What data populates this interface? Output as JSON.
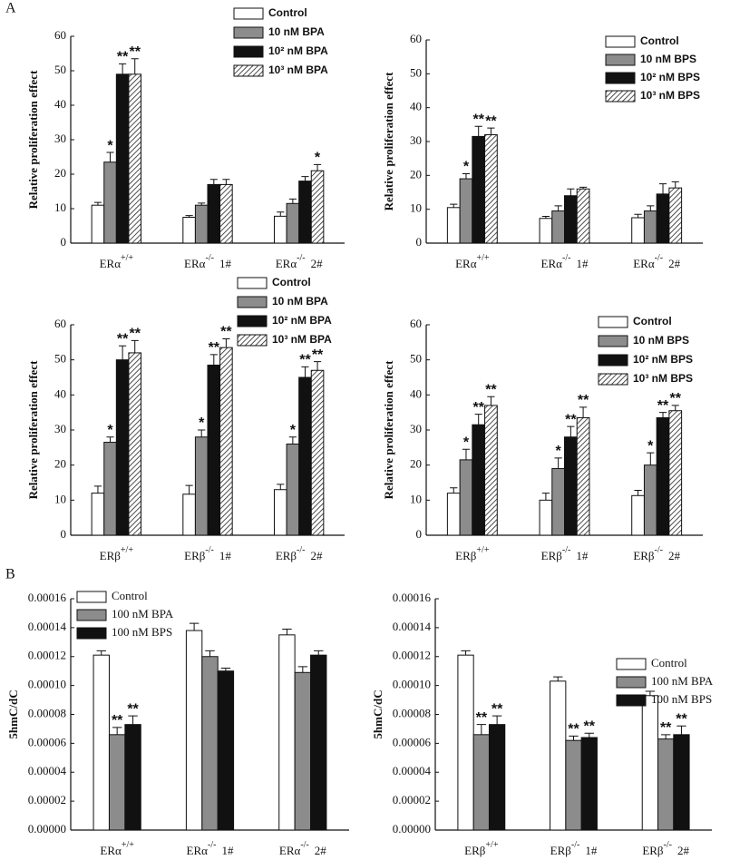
{
  "figure_labels": [
    "A",
    "B"
  ],
  "chart_data": [
    {
      "type": "bar",
      "ylabel": "Relative proliferation effect",
      "categories": [
        {
          "label": "ERα",
          "sup": "+/+"
        },
        {
          "label": "ERα",
          "sup": "-/-",
          "suffix": "1#"
        },
        {
          "label": "ERα",
          "sup": "-/-",
          "suffix": "2#"
        }
      ],
      "ylim": [
        0,
        60
      ],
      "yticks": [
        0,
        10,
        20,
        30,
        40,
        50,
        60
      ],
      "series": [
        {
          "name": "Control",
          "color": "#ffffff",
          "values": [
            11,
            7.5,
            7.8
          ],
          "errors": [
            0.8,
            0.5,
            1.2
          ],
          "annotations": [
            null,
            null,
            null
          ]
        },
        {
          "name": "10 nM BPA",
          "color": "#8c8c8c",
          "values": [
            23.5,
            11,
            11.5
          ],
          "errors": [
            2.8,
            0.6,
            1.3
          ],
          "annotations": [
            "*",
            null,
            null
          ]
        },
        {
          "name": "10² nM BPA",
          "color": "#111111",
          "values": [
            49,
            17,
            18
          ],
          "errors": [
            3,
            1.5,
            1.3
          ],
          "annotations": [
            "**",
            null,
            null
          ]
        },
        {
          "name": "10³ nM BPA",
          "color": "#ffffff",
          "pattern": "hatch",
          "values": [
            49,
            17,
            21
          ],
          "errors": [
            4.5,
            1.5,
            1.8
          ],
          "annotations": [
            "**",
            null,
            "*"
          ]
        }
      ]
    },
    {
      "type": "bar",
      "ylabel": "Relative proliferation effect",
      "categories": [
        {
          "label": "ERα",
          "sup": "+/+"
        },
        {
          "label": "ERα",
          "sup": "-/-",
          "suffix": "1#"
        },
        {
          "label": "ERα",
          "sup": "-/-",
          "suffix": "2#"
        }
      ],
      "ylim": [
        0,
        60
      ],
      "yticks": [
        0,
        10,
        20,
        30,
        40,
        50,
        60
      ],
      "series": [
        {
          "name": "Control",
          "color": "#ffffff",
          "values": [
            10.5,
            7.3,
            7.5
          ],
          "errors": [
            1,
            0.6,
            1
          ],
          "annotations": [
            null,
            null,
            null
          ]
        },
        {
          "name": "10 nM BPS",
          "color": "#8c8c8c",
          "values": [
            19,
            9.5,
            9.5
          ],
          "errors": [
            1.5,
            1.5,
            1.5
          ],
          "annotations": [
            "*",
            null,
            null
          ]
        },
        {
          "name": "10² nM BPS",
          "color": "#111111",
          "values": [
            31.5,
            14,
            14.5
          ],
          "errors": [
            3,
            2,
            3
          ],
          "annotations": [
            "**",
            null,
            null
          ]
        },
        {
          "name": "10³ nM BPS",
          "color": "#ffffff",
          "pattern": "hatch",
          "values": [
            32,
            16,
            16.3
          ],
          "errors": [
            2,
            0.5,
            1.8
          ],
          "annotations": [
            "**",
            null,
            null
          ]
        }
      ]
    },
    {
      "type": "bar",
      "ylabel": "Relative proliferation effect",
      "categories": [
        {
          "label": "ERβ",
          "sup": "+/+"
        },
        {
          "label": "ERβ",
          "sup": "-/-",
          "suffix": "1#"
        },
        {
          "label": "ERβ",
          "sup": "-/-",
          "suffix": "2#"
        }
      ],
      "ylim": [
        0,
        60
      ],
      "yticks": [
        0,
        10,
        20,
        30,
        40,
        50,
        60
      ],
      "series": [
        {
          "name": "Control",
          "color": "#ffffff",
          "values": [
            12,
            11.7,
            13
          ],
          "errors": [
            2,
            2.5,
            1.5
          ],
          "annotations": [
            null,
            null,
            null
          ]
        },
        {
          "name": "10 nM BPA",
          "color": "#8c8c8c",
          "values": [
            26.5,
            28,
            26
          ],
          "errors": [
            1.5,
            2,
            2
          ],
          "annotations": [
            "*",
            "*",
            "*"
          ]
        },
        {
          "name": "10² nM BPA",
          "color": "#111111",
          "values": [
            50,
            48.5,
            45
          ],
          "errors": [
            4,
            3,
            3
          ],
          "annotations": [
            "**",
            "**",
            "**"
          ]
        },
        {
          "name": "10³ nM BPA",
          "color": "#ffffff",
          "pattern": "hatch",
          "values": [
            52,
            53.5,
            47
          ],
          "errors": [
            3.5,
            2.5,
            2.5
          ],
          "annotations": [
            "**",
            "**",
            "**"
          ]
        }
      ]
    },
    {
      "type": "bar",
      "ylabel": "Relative proliferation effect",
      "categories": [
        {
          "label": "ERβ",
          "sup": "+/+"
        },
        {
          "label": "ERβ",
          "sup": "-/-",
          "suffix": "1#"
        },
        {
          "label": "ERβ",
          "sup": "-/-",
          "suffix": "2#"
        }
      ],
      "ylim": [
        0,
        60
      ],
      "yticks": [
        0,
        10,
        20,
        30,
        40,
        50,
        60
      ],
      "series": [
        {
          "name": "Control",
          "color": "#ffffff",
          "values": [
            12,
            10,
            11.3
          ],
          "errors": [
            1.5,
            2,
            1.5
          ],
          "annotations": [
            null,
            null,
            null
          ]
        },
        {
          "name": "10 nM BPS",
          "color": "#8c8c8c",
          "values": [
            21.5,
            19,
            20
          ],
          "errors": [
            3,
            3,
            3.5
          ],
          "annotations": [
            "*",
            "*",
            "*"
          ]
        },
        {
          "name": "10² nM BPS",
          "color": "#111111",
          "values": [
            31.5,
            28,
            33.5
          ],
          "errors": [
            3,
            3,
            1.5
          ],
          "annotations": [
            "**",
            "**",
            "**"
          ]
        },
        {
          "name": "10³ nM BPS",
          "color": "#ffffff",
          "pattern": "hatch",
          "values": [
            37,
            33.5,
            35.5
          ],
          "errors": [
            2.5,
            3,
            1.5
          ],
          "annotations": [
            "**",
            "**",
            "**"
          ]
        }
      ]
    },
    {
      "type": "bar",
      "ylabel": "5hmC/dC",
      "categories": [
        {
          "label": "ERα",
          "sup": "+/+"
        },
        {
          "label": "ERα",
          "sup": "-/-",
          "suffix": "1#"
        },
        {
          "label": "ERα",
          "sup": "-/-",
          "suffix": "2#"
        }
      ],
      "ylim": [
        0,
        0.00016
      ],
      "yticks": [
        {
          "value": 0,
          "label": "0.00000"
        },
        {
          "value": 2e-05,
          "label": "0.00002"
        },
        {
          "value": 4e-05,
          "label": "0.00004"
        },
        {
          "value": 6e-05,
          "label": "0.00006"
        },
        {
          "value": 8e-05,
          "label": "0.00008"
        },
        {
          "value": 0.0001,
          "label": "0.00010"
        },
        {
          "value": 0.00012,
          "label": "0.00012"
        },
        {
          "value": 0.00014,
          "label": "0.00014"
        },
        {
          "value": 0.00016,
          "label": "0.00016"
        }
      ],
      "series": [
        {
          "name": "Control",
          "color": "#ffffff",
          "values": [
            0.000121,
            0.000138,
            0.000135
          ],
          "errors": [
            3e-06,
            5e-06,
            4e-06
          ],
          "annotations": [
            null,
            null,
            null
          ]
        },
        {
          "name": "100 nM BPA",
          "color": "#8c8c8c",
          "values": [
            6.6e-05,
            0.00012,
            0.000109
          ],
          "errors": [
            5e-06,
            4e-06,
            4e-06
          ],
          "annotations": [
            "**",
            null,
            null
          ]
        },
        {
          "name": "100 nM BPS",
          "color": "#111111",
          "values": [
            7.3e-05,
            0.00011,
            0.000121
          ],
          "errors": [
            6e-06,
            2e-06,
            3e-06
          ],
          "annotations": [
            "**",
            null,
            null
          ]
        }
      ]
    },
    {
      "type": "bar",
      "ylabel": "5hmC/dC",
      "categories": [
        {
          "label": "ERβ",
          "sup": "+/+"
        },
        {
          "label": "ERβ",
          "sup": "-/-",
          "suffix": "1#"
        },
        {
          "label": "ERβ",
          "sup": "-/-",
          "suffix": "2#"
        }
      ],
      "ylim": [
        0,
        0.00016
      ],
      "yticks": [
        {
          "value": 0,
          "label": "0.00000"
        },
        {
          "value": 2e-05,
          "label": "0.00002"
        },
        {
          "value": 4e-05,
          "label": "0.00004"
        },
        {
          "value": 6e-05,
          "label": "0.00006"
        },
        {
          "value": 8e-05,
          "label": "0.00008"
        },
        {
          "value": 0.0001,
          "label": "0.00010"
        },
        {
          "value": 0.00012,
          "label": "0.00012"
        },
        {
          "value": 0.00014,
          "label": "0.00014"
        },
        {
          "value": 0.00016,
          "label": "0.00016"
        }
      ],
      "series": [
        {
          "name": "Control",
          "color": "#ffffff",
          "values": [
            0.000121,
            0.000103,
            9.3e-05
          ],
          "errors": [
            3e-06,
            3e-06,
            3e-06
          ],
          "annotations": [
            null,
            null,
            null
          ]
        },
        {
          "name": "100 nM BPA",
          "color": "#8c8c8c",
          "values": [
            6.6e-05,
            6.2e-05,
            6.3e-05
          ],
          "errors": [
            7e-06,
            3e-06,
            3e-06
          ],
          "annotations": [
            "**",
            "**",
            "**"
          ]
        },
        {
          "name": "100 nM BPS",
          "color": "#111111",
          "values": [
            7.3e-05,
            6.4e-05,
            6.6e-05
          ],
          "errors": [
            6e-06,
            3e-06,
            6e-06
          ],
          "annotations": [
            "**",
            "**",
            "**"
          ]
        }
      ]
    }
  ]
}
